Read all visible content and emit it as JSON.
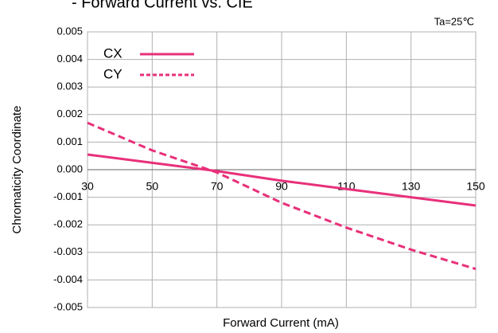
{
  "chart_data": {
    "type": "line",
    "title": "- Forward Current vs. CIE",
    "annotation": "Ta=25℃",
    "x_label": "Forward Current (mA)",
    "y_label": "Chromaticity Coordinate",
    "x": [
      30,
      50,
      70,
      90,
      110,
      130,
      150
    ],
    "series": [
      {
        "name": "CX",
        "color": "#e8307a",
        "line_style": "solid",
        "values": [
          0.00055,
          0.00025,
          -5e-05,
          -0.0004,
          -0.0007,
          -0.001,
          -0.0013
        ]
      },
      {
        "name": "CY",
        "color": "#e8307a",
        "line_style": "dashed",
        "values": [
          0.0017,
          0.0007,
          -0.0001,
          -0.0012,
          -0.0021,
          -0.0029,
          -0.0036
        ]
      }
    ],
    "xlim": [
      30,
      150
    ],
    "xticks": [
      30,
      50,
      70,
      90,
      110,
      130,
      150
    ],
    "ylim": [
      -0.005,
      0.005
    ],
    "yticks": [
      0.005,
      0.004,
      0.003,
      0.002,
      0.001,
      {
        "value": 0,
        "label": "0.000"
      },
      -0.001,
      -0.002,
      -0.003,
      -0.004,
      -0.005
    ],
    "grid": true,
    "legend": "top-left"
  }
}
